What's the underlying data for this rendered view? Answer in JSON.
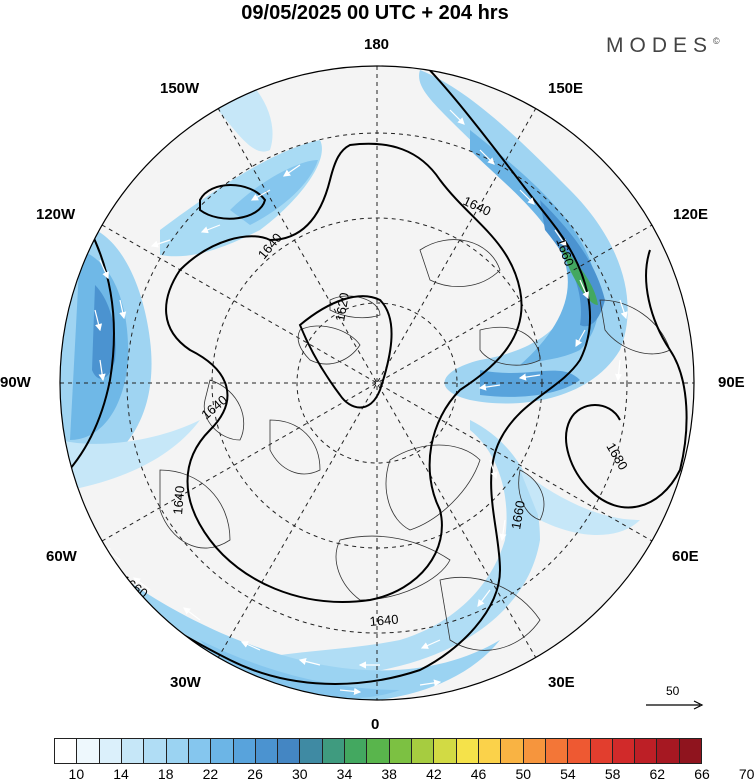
{
  "title": "09/05/2025  00 UTC  + 204 hrs",
  "brand": "MODES",
  "brand_mark": "©",
  "longitude_labels": {
    "top": "180",
    "left": "90W",
    "right": "90E",
    "bottom": "0",
    "upper_left_1": "150W",
    "upper_left_2": "120W",
    "lower_left_1": "60W",
    "lower_left_2": "30W",
    "upper_right_1": "150E",
    "upper_right_2": "120E",
    "lower_right_1": "60E",
    "lower_right_2": "30E"
  },
  "contour_labels": [
    "1640",
    "1640",
    "1620",
    "1640",
    "1640",
    "1660",
    "1640",
    "1660",
    "1680",
    "1660",
    "1640"
  ],
  "vector_reference": "50",
  "colorbar": {
    "ticks": [
      "10",
      "14",
      "18",
      "22",
      "26",
      "30",
      "34",
      "38",
      "42",
      "46",
      "50",
      "54",
      "58",
      "62",
      "66",
      "70"
    ],
    "colors": [
      "#ffffff",
      "#eef8fd",
      "#dbf0fb",
      "#c6e7f8",
      "#b0ddf5",
      "#9bd3f2",
      "#85c6ee",
      "#6cb5e6",
      "#58a3dc",
      "#4b93d0",
      "#4486c3",
      "#3f8aa3",
      "#3f9b7f",
      "#43a860",
      "#59b54c",
      "#7cc142",
      "#a6cc40",
      "#d2da44",
      "#f5e24a",
      "#fbd24a",
      "#f9b343",
      "#f6953d",
      "#f37637",
      "#ee5932",
      "#e23e2e",
      "#d12a2a",
      "#bd1f26",
      "#a61822",
      "#8f141e"
    ]
  }
}
